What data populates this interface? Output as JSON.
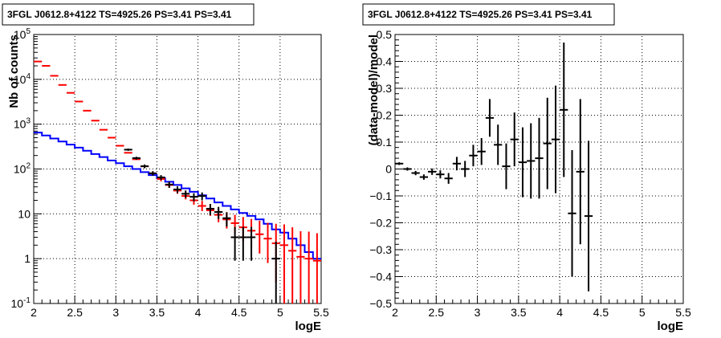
{
  "panels": [
    {
      "title": "3FGL J0612.8+4122 TS=4925.26 PS=3.41 PS=3.41",
      "xlabel": "logE",
      "ylabel": "Nb of counts"
    },
    {
      "title": "3FGL J0612.8+4122 TS=4925.26 PS=3.41 PS=3.41",
      "xlabel": "logE",
      "ylabel": "(data-model)/model"
    }
  ],
  "chart_data": [
    {
      "type": "line",
      "title": "3FGL J0612.8+4122 TS=4925.26 PS=3.41 PS=3.41",
      "xlabel": "logE",
      "ylabel": "Nb of counts",
      "xlim": [
        2,
        5.5
      ],
      "ylim": [
        0.1,
        100000
      ],
      "yscale": "log",
      "grid": true,
      "x_ticks": [
        "2",
        "2.5",
        "3",
        "3.5",
        "4",
        "4.5",
        "5",
        "5.5"
      ],
      "y_ticks": [
        "10^-1",
        "1",
        "10",
        "10^2",
        "10^3",
        "10^4",
        "10^5"
      ],
      "series": [
        {
          "kind": "step",
          "color": "#0000ff",
          "bin_width": 0.1,
          "x": [
            2.05,
            2.15,
            2.25,
            2.35,
            2.45,
            2.55,
            2.65,
            2.75,
            2.85,
            2.95,
            3.05,
            3.15,
            3.25,
            3.35,
            3.45,
            3.55,
            3.65,
            3.75,
            3.85,
            3.95,
            4.05,
            4.15,
            4.25,
            4.35,
            4.45,
            4.55,
            4.65,
            4.75,
            4.85,
            4.95,
            5.05,
            5.15,
            5.25,
            5.35,
            5.45
          ],
          "values": [
            650,
            560,
            480,
            410,
            350,
            300,
            255,
            215,
            185,
            155,
            135,
            115,
            100,
            85,
            73,
            62,
            52,
            44,
            37,
            31,
            26,
            22,
            18,
            15,
            12.5,
            10.5,
            9,
            7.5,
            6,
            4.5,
            3.8,
            2.8,
            2.0,
            1.4,
            1.0
          ]
        },
        {
          "kind": "points",
          "color": "#ff0000",
          "bin_width": 0.1,
          "x": [
            2.05,
            2.15,
            2.25,
            2.35,
            2.45,
            2.55,
            2.65,
            2.75,
            2.85,
            2.95,
            3.05,
            3.15,
            3.25,
            3.35,
            3.45,
            3.55,
            3.65,
            3.75,
            3.85,
            3.95,
            4.05,
            4.15,
            4.25,
            4.35,
            4.45,
            4.55,
            4.65,
            4.75,
            4.85,
            4.95,
            5.05,
            5.15,
            5.25,
            5.35,
            5.45
          ],
          "values": [
            25000,
            20000,
            12000,
            7500,
            5000,
            3200,
            2000,
            1200,
            750,
            500,
            330,
            230,
            165,
            115,
            80,
            60,
            44,
            33,
            25,
            20,
            15,
            12,
            9.5,
            7.5,
            6.2,
            5,
            4.2,
            3.5,
            2.8,
            2.2,
            2.0,
            1.5,
            1.1,
            1.0,
            0.9
          ],
          "err_low": [
            0,
            0,
            0,
            0,
            0,
            0,
            0,
            0,
            0,
            0,
            0,
            0,
            0,
            0,
            8,
            7,
            6,
            5,
            4,
            4,
            3.5,
            3,
            3,
            2.8,
            2.5,
            2.5,
            2.4,
            2.2,
            2.0,
            1.9,
            1.9,
            1.45,
            1.06,
            0.97,
            0.88
          ],
          "err_high": [
            0,
            0,
            0,
            0,
            0,
            0,
            0,
            0,
            0,
            0,
            0,
            0,
            0,
            0,
            9,
            8,
            7,
            6,
            5,
            5,
            4.5,
            4,
            3.6,
            3.4,
            3.3,
            3.5,
            3.5,
            3.5,
            3.5,
            3.8,
            3.8,
            3.5,
            3.0,
            3.0,
            2.8
          ]
        },
        {
          "kind": "points",
          "color": "#000000",
          "bin_width": 0.1,
          "x": [
            3.15,
            3.25,
            3.35,
            3.45,
            3.55,
            3.65,
            3.75,
            3.85,
            3.95,
            4.05,
            4.15,
            4.25,
            4.35,
            4.45,
            4.55,
            4.65,
            4.95
          ],
          "values": [
            270,
            175,
            115,
            80,
            65,
            45,
            35,
            28,
            24,
            25,
            13,
            11,
            8,
            3,
            3,
            3,
            1
          ],
          "err_low": [
            16,
            13,
            11,
            9,
            8,
            7,
            6,
            5.3,
            4.9,
            5,
            3.6,
            3.3,
            2.8,
            2.1,
            2.1,
            2.1,
            0.95
          ],
          "err_high": [
            16,
            13,
            11,
            9,
            8,
            7,
            6,
            5.3,
            4.9,
            5,
            3.6,
            3.3,
            2.8,
            2.1,
            2.1,
            2.1,
            1.4
          ]
        }
      ]
    },
    {
      "type": "scatter",
      "title": "3FGL J0612.8+4122 TS=4925.26 PS=3.41 PS=3.41",
      "xlabel": "logE",
      "ylabel": "(data-model)/model",
      "xlim": [
        2,
        5.5
      ],
      "ylim": [
        -0.5,
        0.5
      ],
      "grid": true,
      "x_ticks": [
        "2",
        "2.5",
        "3",
        "3.5",
        "4",
        "4.5",
        "5",
        "5.5"
      ],
      "y_ticks": [
        "−0.5",
        "−0.4",
        "−0.3",
        "−0.2",
        "−0.1",
        "0",
        "0.1",
        "0.2",
        "0.3",
        "0.4",
        "0.5"
      ],
      "series": [
        {
          "kind": "points",
          "color": "#000000",
          "bin_width": 0.1,
          "x": [
            2.05,
            2.15,
            2.25,
            2.35,
            2.45,
            2.55,
            2.65,
            2.75,
            2.85,
            2.95,
            3.05,
            3.15,
            3.25,
            3.35,
            3.45,
            3.55,
            3.65,
            3.75,
            3.85,
            3.95,
            4.05,
            4.15,
            4.25,
            4.35
          ],
          "values": [
            0.02,
            0.0,
            -0.015,
            -0.03,
            -0.01,
            -0.02,
            -0.035,
            0.02,
            0.0,
            0.05,
            0.065,
            0.19,
            0.09,
            0.01,
            0.11,
            0.025,
            0.03,
            0.04,
            0.095,
            0.11,
            0.22,
            -0.165,
            -0.01,
            -0.175
          ],
          "err": [
            0.005,
            0.006,
            0.008,
            0.01,
            0.012,
            0.015,
            0.02,
            0.025,
            0.03,
            0.04,
            0.05,
            0.07,
            0.075,
            0.085,
            0.1,
            0.13,
            0.14,
            0.15,
            0.17,
            0.2,
            0.25,
            0.235,
            0.27,
            0.28
          ]
        }
      ]
    }
  ]
}
